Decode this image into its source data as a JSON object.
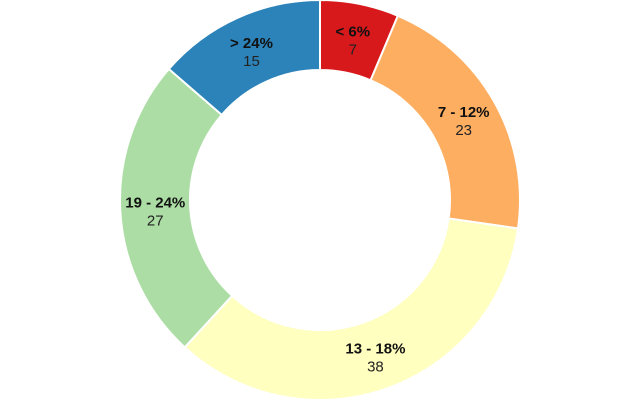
{
  "chart_data": {
    "type": "pie",
    "variant": "donut",
    "title": "",
    "slices": [
      {
        "label": "< 6%",
        "value": 7,
        "color": "#d7191c"
      },
      {
        "label": "7 - 12%",
        "value": 23,
        "color": "#fdae61"
      },
      {
        "label": "13 - 18%",
        "value": 38,
        "color": "#ffffbf"
      },
      {
        "label": "19 - 24%",
        "value": 27,
        "color": "#abdda4"
      },
      {
        "label": "> 24%",
        "value": 15,
        "color": "#2b83ba"
      }
    ],
    "start_angle_deg": 0,
    "direction": "clockwise",
    "legend": "none"
  }
}
